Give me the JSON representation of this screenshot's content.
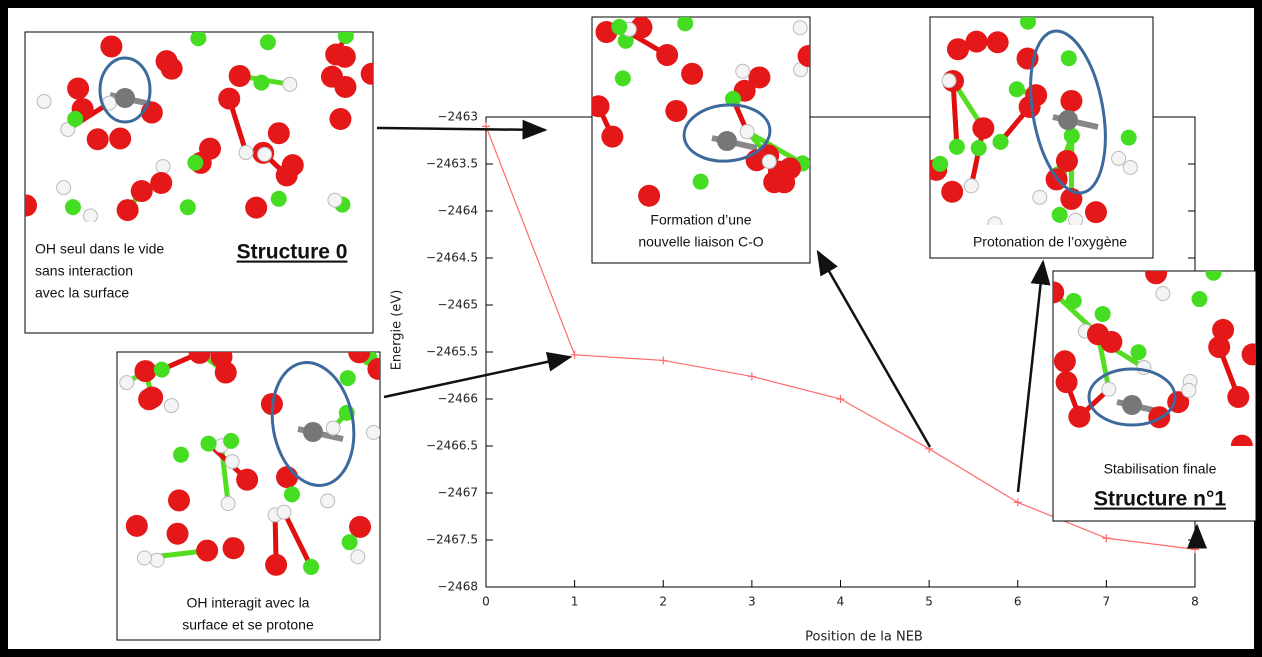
{
  "chart_data": {
    "type": "line",
    "xlabel": "Position de la NEB",
    "ylabel": "Energie (eV)",
    "x": [
      0,
      1,
      2,
      3,
      4,
      5,
      6,
      7,
      8
    ],
    "series": [
      {
        "name": "NEB",
        "color": "#ff6b6b",
        "values": [
          -2463.1,
          -2465.53,
          -2465.59,
          -2465.76,
          -2466.0,
          -2466.53,
          -2467.1,
          -2467.48,
          -2467.6
        ]
      }
    ],
    "xlim": [
      0,
      8
    ],
    "ylim": [
      -2468,
      -2463
    ],
    "xticks": [
      0,
      1,
      2,
      3,
      4,
      5,
      6,
      7,
      8
    ],
    "yticks": [
      {
        "value": -2468,
        "label": "−2468"
      },
      {
        "value": -2467.5,
        "label": "−2467.5"
      },
      {
        "value": -2467,
        "label": "−2467"
      },
      {
        "value": -2466.5,
        "label": "−2466.5"
      },
      {
        "value": -2466,
        "label": "−2466"
      },
      {
        "value": -2465.5,
        "label": "−2465.5"
      },
      {
        "value": -2465,
        "label": "−2465"
      },
      {
        "value": -2464.5,
        "label": "−2464.5"
      },
      {
        "value": -2464,
        "label": "−2464"
      },
      {
        "value": -2463.5,
        "label": "−2463.5"
      },
      {
        "value": -2463,
        "label": "−2463"
      }
    ],
    "annotations": [
      {
        "lines": [
          "OH seul dans le vide",
          "sans interaction",
          "avec la surface"
        ],
        "title": "Structure 0"
      },
      {
        "lines": [
          "OH interagit avec la",
          "surface et se protone"
        ]
      },
      {
        "lines": [
          "Formation d’une",
          "nouvelle liaison C-O"
        ]
      },
      {
        "lines": [
          "Protonation de l’oxygène"
        ]
      },
      {
        "lines": [
          "Stabilisation finale"
        ],
        "title": "Structure n°1"
      }
    ]
  }
}
